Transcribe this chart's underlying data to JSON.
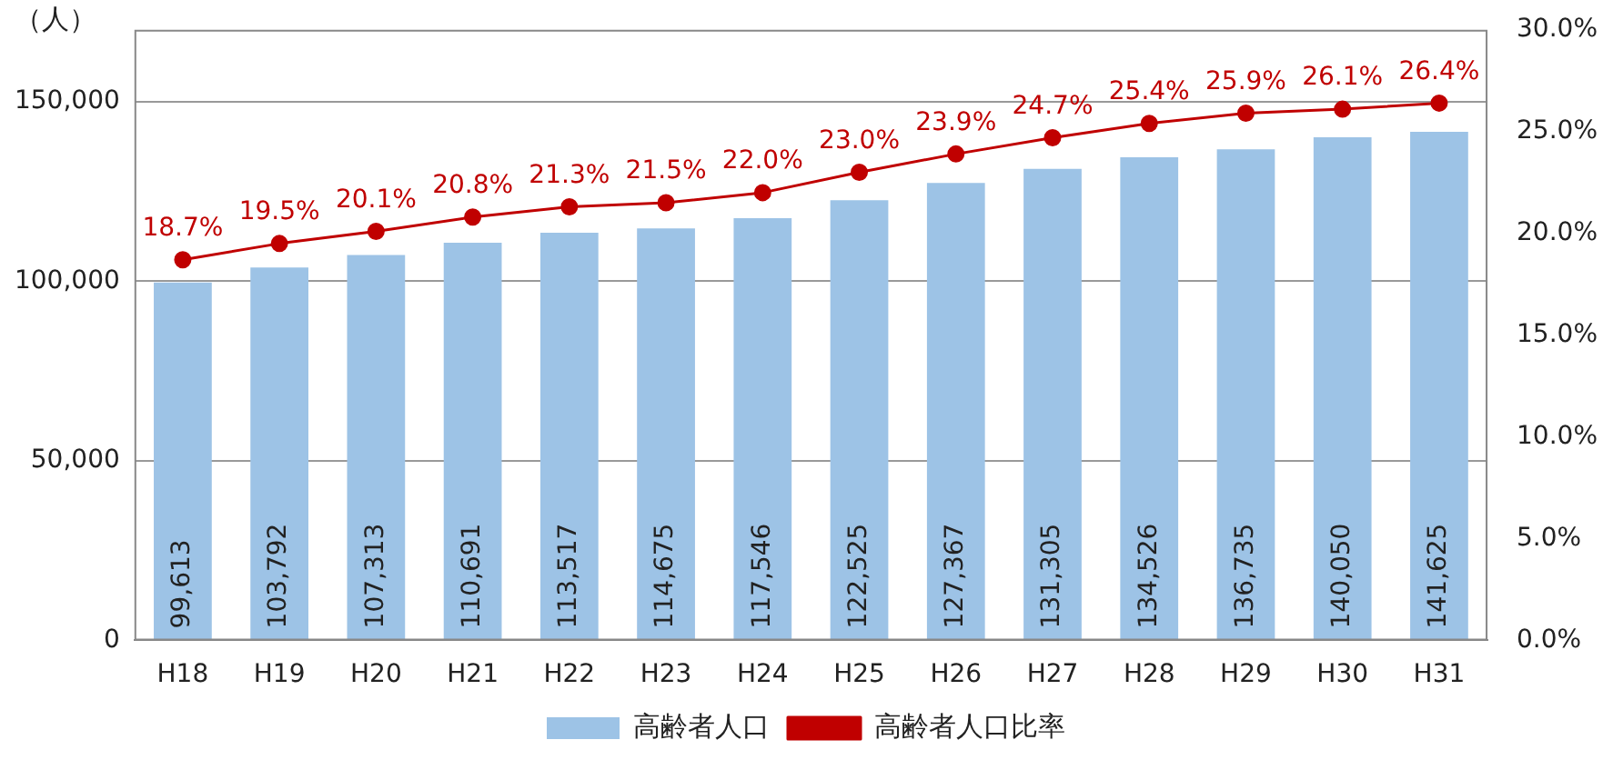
{
  "chart_data": {
    "type": "bar",
    "ylabel": "（人）",
    "categories": [
      "H18",
      "H19",
      "H20",
      "H21",
      "H22",
      "H23",
      "H24",
      "H25",
      "H26",
      "H27",
      "H28",
      "H29",
      "H30",
      "H31"
    ],
    "series": [
      {
        "name": "高齢者人口",
        "color": "#9dc3e6",
        "values": [
          99613,
          103792,
          107313,
          110691,
          113517,
          114675,
          117546,
          122525,
          127367,
          131305,
          134526,
          136735,
          140050,
          141625
        ],
        "value_labels": [
          "99,613",
          "103,792",
          "107,313",
          "110,691",
          "113,517",
          "114,675",
          "117,546",
          "122,525",
          "127,367",
          "131,305",
          "134,526",
          "136,735",
          "140,050",
          "141,625"
        ]
      },
      {
        "name": "高齢者人口比率",
        "type": "line",
        "axis": "y2",
        "color": "#c00000",
        "marker": "circle",
        "values": [
          18.7,
          19.5,
          20.1,
          20.8,
          21.3,
          21.5,
          22.0,
          23.0,
          23.9,
          24.7,
          25.4,
          25.9,
          26.1,
          26.4
        ],
        "value_labels": [
          "18.7%",
          "19.5%",
          "20.1%",
          "20.8%",
          "21.3%",
          "21.5%",
          "22.0%",
          "23.0%",
          "23.9%",
          "24.7%",
          "25.4%",
          "25.9%",
          "26.1%",
          "26.4%"
        ]
      }
    ],
    "ylim": [
      0,
      170000
    ],
    "yticks": [
      0,
      {
        "value": 50000,
        "label": "50,000"
      },
      {
        "value": 100000,
        "label": "100,000"
      },
      {
        "value": 150000,
        "label": "150,000"
      }
    ],
    "y2lim": [
      0,
      30
    ],
    "y2ticks": [
      {
        "value": 0,
        "label": "0.0%"
      },
      {
        "value": 5,
        "label": "5.0%"
      },
      {
        "value": 10,
        "label": "10.0%"
      },
      {
        "value": 15,
        "label": "15.0%"
      },
      {
        "value": 20,
        "label": "20.0%"
      },
      {
        "value": 25,
        "label": "25.0%"
      },
      {
        "value": 30,
        "label": "30.0%"
      }
    ],
    "grid": "y",
    "legend": "bottom"
  }
}
